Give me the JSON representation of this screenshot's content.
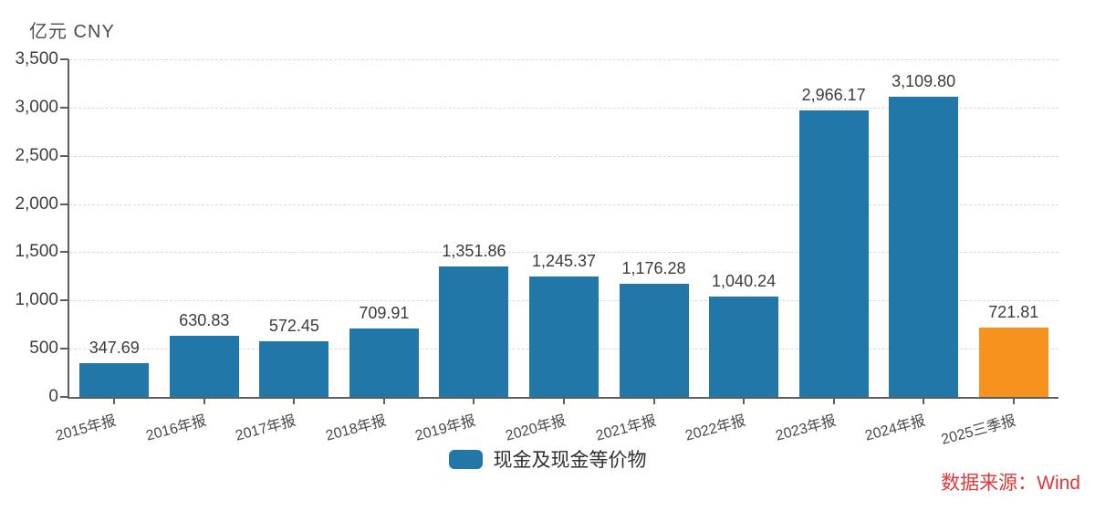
{
  "chart_data": {
    "type": "bar",
    "title": "",
    "unit_label": "亿元 CNY",
    "categories": [
      "2015年报",
      "2016年报",
      "2017年报",
      "2018年报",
      "2019年报",
      "2020年报",
      "2021年报",
      "2022年报",
      "2023年报",
      "2024年报",
      "2025三季报"
    ],
    "values": [
      347.69,
      630.83,
      572.45,
      709.91,
      1351.86,
      1245.37,
      1176.28,
      1040.24,
      2966.17,
      3109.8,
      721.81
    ],
    "value_labels": [
      "347.69",
      "630.83",
      "572.45",
      "709.91",
      "1,351.86",
      "1,245.37",
      "1,176.28",
      "1,040.24",
      "2,966.17",
      "3,109.80",
      "721.81"
    ],
    "bar_colors": [
      "#2077A8",
      "#2077A8",
      "#2077A8",
      "#2077A8",
      "#2077A8",
      "#2077A8",
      "#2077A8",
      "#2077A8",
      "#2077A8",
      "#2077A8",
      "#F6921D"
    ],
    "ylim": [
      0,
      3500
    ],
    "ytick_step": 500,
    "ytick_labels": [
      "0",
      "500",
      "1,000",
      "1,500",
      "2,000",
      "2,500",
      "3,000",
      "3,500"
    ],
    "grid": "horizontal-dashed",
    "legend": {
      "label": "现金及现金等价物",
      "color": "#2077A8",
      "position": "bottom-center"
    },
    "source": {
      "text": "数据来源：Wind",
      "color": "#E0393B"
    }
  }
}
